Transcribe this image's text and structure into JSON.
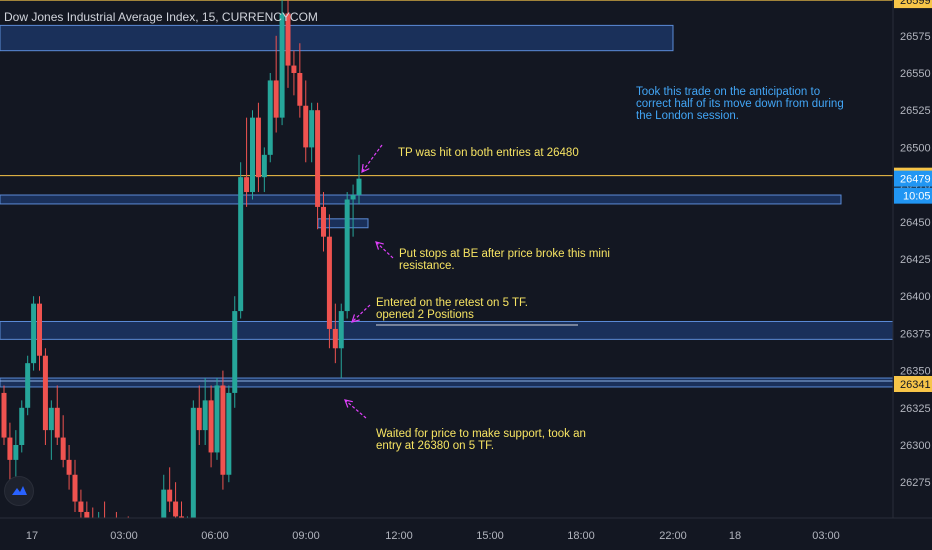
{
  "chart_data": {
    "type": "candlestick",
    "title": "Dow Jones Industrial Average Index, 15, CURRENCYCOM",
    "ylim": [
      26250,
      26600
    ],
    "y_ticks": [
      26275,
      26300,
      26325,
      26350,
      26375,
      26400,
      26425,
      26450,
      26475,
      26500,
      26525,
      26550,
      26575
    ],
    "x_ticks": [
      "17",
      "03:00",
      "06:00",
      "09:00",
      "12:00",
      "15:00",
      "18:00",
      "22:00",
      "18",
      "03:00"
    ],
    "price_labels": {
      "top_cut": "26599",
      "tp_line": "26481",
      "last_price": "26479",
      "countdown": "10:05",
      "support_line": "26341"
    },
    "levels": {
      "top_cut": 26599,
      "tp_line": 26481,
      "last_price": 26479,
      "support_line": 26341
    },
    "zones": [
      {
        "name": "upper-zone",
        "low": 26565,
        "high": 26582
      },
      {
        "name": "mid-zone",
        "low": 26462,
        "high": 26468
      },
      {
        "name": "mini-resistance-zone",
        "low": 26446,
        "high": 26452
      },
      {
        "name": "entry-zone",
        "low": 26371,
        "high": 26383
      },
      {
        "name": "support-zone",
        "low": 26339,
        "high": 26345
      }
    ],
    "candles": [
      [
        26335,
        26340,
        26300,
        26305
      ],
      [
        26305,
        26315,
        26275,
        26290
      ],
      [
        26290,
        26310,
        26270,
        26300
      ],
      [
        26300,
        26330,
        26295,
        26325
      ],
      [
        26325,
        26360,
        26320,
        26355
      ],
      [
        26355,
        26400,
        26350,
        26395
      ],
      [
        26395,
        26400,
        26350,
        26360
      ],
      [
        26360,
        26365,
        26300,
        26310
      ],
      [
        26310,
        26330,
        26290,
        26325
      ],
      [
        26325,
        26340,
        26300,
        26305
      ],
      [
        26305,
        26320,
        26285,
        26290
      ],
      [
        26290,
        26300,
        26270,
        26280
      ],
      [
        26280,
        26290,
        26255,
        26262
      ],
      [
        26262,
        26270,
        26245,
        26255
      ],
      [
        26255,
        26262,
        26240,
        26250
      ],
      [
        26250,
        26258,
        26235,
        26245
      ],
      [
        26245,
        26255,
        26230,
        26250
      ],
      [
        26250,
        26262,
        26235,
        26240
      ],
      [
        26240,
        26250,
        26225,
        26245
      ],
      [
        26245,
        26255,
        26230,
        26235
      ],
      [
        26235,
        26245,
        26220,
        26240
      ],
      [
        26240,
        26252,
        26228,
        26232
      ],
      [
        26232,
        26242,
        26218,
        26238
      ],
      [
        26238,
        26250,
        26225,
        26230
      ],
      [
        26230,
        26242,
        26215,
        26236
      ],
      [
        26236,
        26248,
        26222,
        26228
      ],
      [
        26228,
        26240,
        26212,
        26235
      ],
      [
        26235,
        26280,
        26230,
        26270
      ],
      [
        26270,
        26285,
        26255,
        26262
      ],
      [
        26262,
        26275,
        26245,
        26252
      ],
      [
        26252,
        26262,
        26238,
        26242
      ],
      [
        26242,
        26252,
        26230,
        26246
      ],
      [
        26246,
        26330,
        26240,
        26325
      ],
      [
        26325,
        26340,
        26300,
        26310
      ],
      [
        26310,
        26345,
        26300,
        26330
      ],
      [
        26330,
        26340,
        26285,
        26295
      ],
      [
        26295,
        26345,
        26290,
        26340
      ],
      [
        26340,
        26350,
        26270,
        26280
      ],
      [
        26280,
        26340,
        26275,
        26335
      ],
      [
        26335,
        26400,
        26325,
        26390
      ],
      [
        26390,
        26490,
        26385,
        26480
      ],
      [
        26480,
        26520,
        26460,
        26470
      ],
      [
        26470,
        26525,
        26465,
        26520
      ],
      [
        26520,
        26530,
        26470,
        26480
      ],
      [
        26480,
        26500,
        26470,
        26495
      ],
      [
        26495,
        26550,
        26490,
        26545
      ],
      [
        26545,
        26575,
        26510,
        26520
      ],
      [
        26520,
        26610,
        26515,
        26590
      ],
      [
        26590,
        26600,
        26540,
        26555
      ],
      [
        26555,
        26565,
        26535,
        26550
      ],
      [
        26550,
        26570,
        26520,
        26528
      ],
      [
        26528,
        26545,
        26490,
        26500
      ],
      [
        26500,
        26530,
        26490,
        26525
      ],
      [
        26525,
        26530,
        26445,
        26460
      ],
      [
        26460,
        26470,
        26430,
        26440
      ],
      [
        26440,
        26455,
        26365,
        26378
      ],
      [
        26378,
        26395,
        26355,
        26365
      ],
      [
        26365,
        26395,
        26345,
        26390
      ],
      [
        26390,
        26470,
        26385,
        26465
      ],
      [
        26465,
        26475,
        26440,
        26468
      ],
      [
        26468,
        26495,
        26462,
        26479
      ]
    ]
  },
  "annotations": {
    "blue_note": "Took this trade on the anticipation to\ncorrect half of its move down from during\nthe London session.",
    "tp_note": "TP was hit on both entries at 26480",
    "be_note": "Put stops at BE after price broke this mini\nresistance.",
    "entry_note": "Entered on the retest on 5 TF.\nopened 2 Positions",
    "wait_note": "Waited for price to make support, took an\nentry at 26380 on 5 TF."
  },
  "colors": {
    "background": "#131722",
    "up": "#26a69a",
    "down": "#ef5350",
    "zone": "#1e3a6e",
    "zone_border": "#5b8bd6",
    "level_line": "#f7c548",
    "annotation_yellow": "#f7e463",
    "annotation_blue": "#42a5f5",
    "arrow": "#e040fb",
    "last_price_bg": "#2196f3"
  }
}
